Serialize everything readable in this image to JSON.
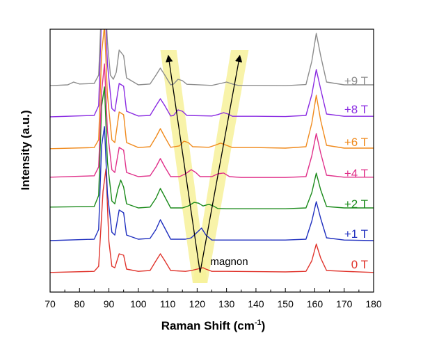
{
  "chart_data": {
    "type": "line",
    "xlabel": "Raman Shift (cm",
    "xlabel_sup": "-1",
    "xlabel_end": ")",
    "ylabel": "Intensity (a.u.)",
    "xlim": [
      70,
      180
    ],
    "xticks": [
      "70",
      "80",
      "90",
      "100",
      "110",
      "120",
      "130",
      "140",
      "150",
      "160",
      "170",
      "180"
    ],
    "y_ticks_shown": false,
    "grid": false,
    "annotation": "magnon",
    "highlight_color": "#f7f19a",
    "series": [
      {
        "name": "0 T",
        "color": "#e0332b",
        "points": [
          [
            70,
            0.8
          ],
          [
            85,
            1.2
          ],
          [
            86.5,
            3
          ],
          [
            88,
            30
          ],
          [
            89,
            38
          ],
          [
            90,
            12
          ],
          [
            91,
            3
          ],
          [
            92,
            2.5
          ],
          [
            93.5,
            7.5
          ],
          [
            95,
            7
          ],
          [
            96,
            2
          ],
          [
            100,
            1.2
          ],
          [
            104,
            1.5
          ],
          [
            106,
            5
          ],
          [
            107.5,
            7.5
          ],
          [
            109,
            5
          ],
          [
            111,
            1.5
          ],
          [
            116,
            1.2
          ],
          [
            118,
            1.5
          ],
          [
            120,
            2
          ],
          [
            122,
            2.5
          ],
          [
            123,
            2
          ],
          [
            125,
            1.2
          ],
          [
            130,
            1.2
          ],
          [
            150,
            1
          ],
          [
            157,
            1.2
          ],
          [
            159,
            5
          ],
          [
            160.5,
            11
          ],
          [
            162,
            6
          ],
          [
            164,
            1.5
          ],
          [
            170,
            1.2
          ],
          [
            180,
            0.8
          ]
        ]
      },
      {
        "name": "+1 T",
        "color": "#1f2fbf",
        "points": [
          [
            70,
            1
          ],
          [
            85,
            1.5
          ],
          [
            86.5,
            5
          ],
          [
            87.5,
            35
          ],
          [
            88.5,
            42
          ],
          [
            89.5,
            18
          ],
          [
            91,
            4
          ],
          [
            92,
            3
          ],
          [
            93.5,
            12
          ],
          [
            95,
            11
          ],
          [
            96,
            3
          ],
          [
            100,
            1.5
          ],
          [
            104,
            1.8
          ],
          [
            106,
            5
          ],
          [
            107.5,
            8.5
          ],
          [
            109,
            5.5
          ],
          [
            111,
            1.5
          ],
          [
            116,
            1.5
          ],
          [
            118,
            2
          ],
          [
            120,
            4
          ],
          [
            121.5,
            5.5
          ],
          [
            123,
            3
          ],
          [
            125,
            1.2
          ],
          [
            130,
            1.2
          ],
          [
            150,
            1.2
          ],
          [
            157,
            1.5
          ],
          [
            159,
            8
          ],
          [
            160.5,
            15
          ],
          [
            162,
            9
          ],
          [
            164,
            2
          ],
          [
            170,
            1.2
          ],
          [
            180,
            1
          ]
        ]
      },
      {
        "name": "+2 T",
        "color": "#1a8a1a",
        "points": [
          [
            70,
            1.8
          ],
          [
            85,
            2
          ],
          [
            86.5,
            6
          ],
          [
            87.5,
            38
          ],
          [
            88.5,
            45
          ],
          [
            89.5,
            18
          ],
          [
            91,
            4
          ],
          [
            92,
            3
          ],
          [
            93,
            8
          ],
          [
            94,
            11.5
          ],
          [
            95,
            9
          ],
          [
            96,
            3
          ],
          [
            100,
            1.5
          ],
          [
            104,
            1.8
          ],
          [
            106,
            5
          ],
          [
            107.5,
            8.5
          ],
          [
            109,
            5.5
          ],
          [
            111,
            1.5
          ],
          [
            115,
            1.5
          ],
          [
            117,
            2.2
          ],
          [
            119,
            3.5
          ],
          [
            120.5,
            3.2
          ],
          [
            122,
            2.2
          ],
          [
            124,
            2.8
          ],
          [
            125.5,
            2.2
          ],
          [
            127,
            1.3
          ],
          [
            130,
            1.2
          ],
          [
            150,
            1.2
          ],
          [
            157,
            1.5
          ],
          [
            159,
            7
          ],
          [
            160.5,
            14
          ],
          [
            162,
            8
          ],
          [
            164,
            2
          ],
          [
            170,
            1.5
          ],
          [
            180,
            1.5
          ]
        ]
      },
      {
        "name": "+4 T",
        "color": "#e0308a",
        "points": [
          [
            70,
            1.3
          ],
          [
            85,
            1.8
          ],
          [
            86.5,
            5
          ],
          [
            87.5,
            32
          ],
          [
            88.5,
            42
          ],
          [
            89.5,
            18
          ],
          [
            91,
            4
          ],
          [
            92,
            3
          ],
          [
            93.5,
            12
          ],
          [
            95,
            11
          ],
          [
            96,
            3
          ],
          [
            100,
            1.5
          ],
          [
            104,
            1.8
          ],
          [
            106,
            5
          ],
          [
            107.5,
            8
          ],
          [
            109,
            5
          ],
          [
            111,
            1.5
          ],
          [
            114,
            1.5
          ],
          [
            116,
            2.5
          ],
          [
            118,
            4
          ],
          [
            119.5,
            3
          ],
          [
            121,
            1.5
          ],
          [
            125,
            1.5
          ],
          [
            127,
            2.5
          ],
          [
            129,
            2.8
          ],
          [
            131,
            1.5
          ],
          [
            135,
            1.2
          ],
          [
            150,
            1.2
          ],
          [
            157,
            1.5
          ],
          [
            159,
            9
          ],
          [
            160.5,
            17
          ],
          [
            162,
            10
          ],
          [
            164,
            2
          ],
          [
            170,
            1.3
          ],
          [
            180,
            1.3
          ]
        ]
      },
      {
        "name": "+6 T",
        "color": "#f08a1c",
        "points": [
          [
            70,
            0.8
          ],
          [
            85,
            1.2
          ],
          [
            86.5,
            4
          ],
          [
            87.5,
            35
          ],
          [
            88.5,
            45
          ],
          [
            89.5,
            20
          ],
          [
            91,
            4
          ],
          [
            92,
            3
          ],
          [
            93.5,
            14
          ],
          [
            95,
            13
          ],
          [
            96,
            3
          ],
          [
            100,
            1.2
          ],
          [
            104,
            1.5
          ],
          [
            106,
            5
          ],
          [
            107.5,
            8
          ],
          [
            109,
            5
          ],
          [
            111,
            1.3
          ],
          [
            114,
            1.8
          ],
          [
            115.5,
            3.5
          ],
          [
            117,
            3
          ],
          [
            118.5,
            1.5
          ],
          [
            124,
            1.3
          ],
          [
            126,
            2
          ],
          [
            128,
            2.8
          ],
          [
            130,
            2
          ],
          [
            132,
            1.2
          ],
          [
            140,
            1.2
          ],
          [
            150,
            1
          ],
          [
            157,
            1.5
          ],
          [
            159,
            10
          ],
          [
            160.5,
            20
          ],
          [
            162,
            11
          ],
          [
            164,
            2
          ],
          [
            170,
            1
          ],
          [
            180,
            1
          ]
        ]
      },
      {
        "name": "+8 T",
        "color": "#8a2be2",
        "points": [
          [
            70,
            1
          ],
          [
            85,
            1.5
          ],
          [
            86.5,
            5
          ],
          [
            87.5,
            38
          ],
          [
            88.5,
            48
          ],
          [
            89.5,
            20
          ],
          [
            91,
            4
          ],
          [
            92,
            3
          ],
          [
            93.5,
            13
          ],
          [
            95,
            12
          ],
          [
            96,
            3
          ],
          [
            100,
            1.3
          ],
          [
            104,
            1.5
          ],
          [
            106,
            5
          ],
          [
            107.5,
            7.5
          ],
          [
            109,
            5
          ],
          [
            111,
            1.3
          ],
          [
            112,
            1.5
          ],
          [
            113.5,
            3.5
          ],
          [
            115,
            3
          ],
          [
            116.5,
            1.5
          ],
          [
            125,
            1.3
          ],
          [
            127,
            1.8
          ],
          [
            129,
            2.5
          ],
          [
            130.5,
            2
          ],
          [
            132,
            1.2
          ],
          [
            140,
            1.2
          ],
          [
            150,
            1.1
          ],
          [
            157,
            1.5
          ],
          [
            159,
            9
          ],
          [
            160.5,
            18
          ],
          [
            162,
            11
          ],
          [
            164,
            2
          ],
          [
            170,
            1.2
          ],
          [
            180,
            1.2
          ]
        ]
      },
      {
        "name": "+9 T",
        "color": "#8c8c8c",
        "points": [
          [
            70,
            1.2
          ],
          [
            76,
            1.5
          ],
          [
            78,
            2.5
          ],
          [
            80,
            1.8
          ],
          [
            85,
            2
          ],
          [
            86.5,
            5
          ],
          [
            87.5,
            30
          ],
          [
            88.5,
            38
          ],
          [
            89.5,
            17
          ],
          [
            90.5,
            5
          ],
          [
            91.5,
            3.5
          ],
          [
            92.5,
            6
          ],
          [
            93.5,
            14
          ],
          [
            95,
            12
          ],
          [
            96,
            4
          ],
          [
            100,
            1.5
          ],
          [
            104,
            1.8
          ],
          [
            106,
            5
          ],
          [
            107.5,
            7.5
          ],
          [
            109,
            5
          ],
          [
            111,
            1.5
          ],
          [
            112,
            1.8
          ],
          [
            113.5,
            3.5
          ],
          [
            115,
            3
          ],
          [
            116.5,
            1.7
          ],
          [
            125,
            1.3
          ],
          [
            128,
            2
          ],
          [
            130,
            2.5
          ],
          [
            132,
            1.8
          ],
          [
            134,
            1.3
          ],
          [
            140,
            1.3
          ],
          [
            150,
            1.2
          ],
          [
            157,
            1.6
          ],
          [
            159,
            10
          ],
          [
            160.5,
            20
          ],
          [
            162,
            12
          ],
          [
            164,
            2.5
          ],
          [
            170,
            1.5
          ],
          [
            180,
            1.5
          ]
        ]
      }
    ]
  }
}
